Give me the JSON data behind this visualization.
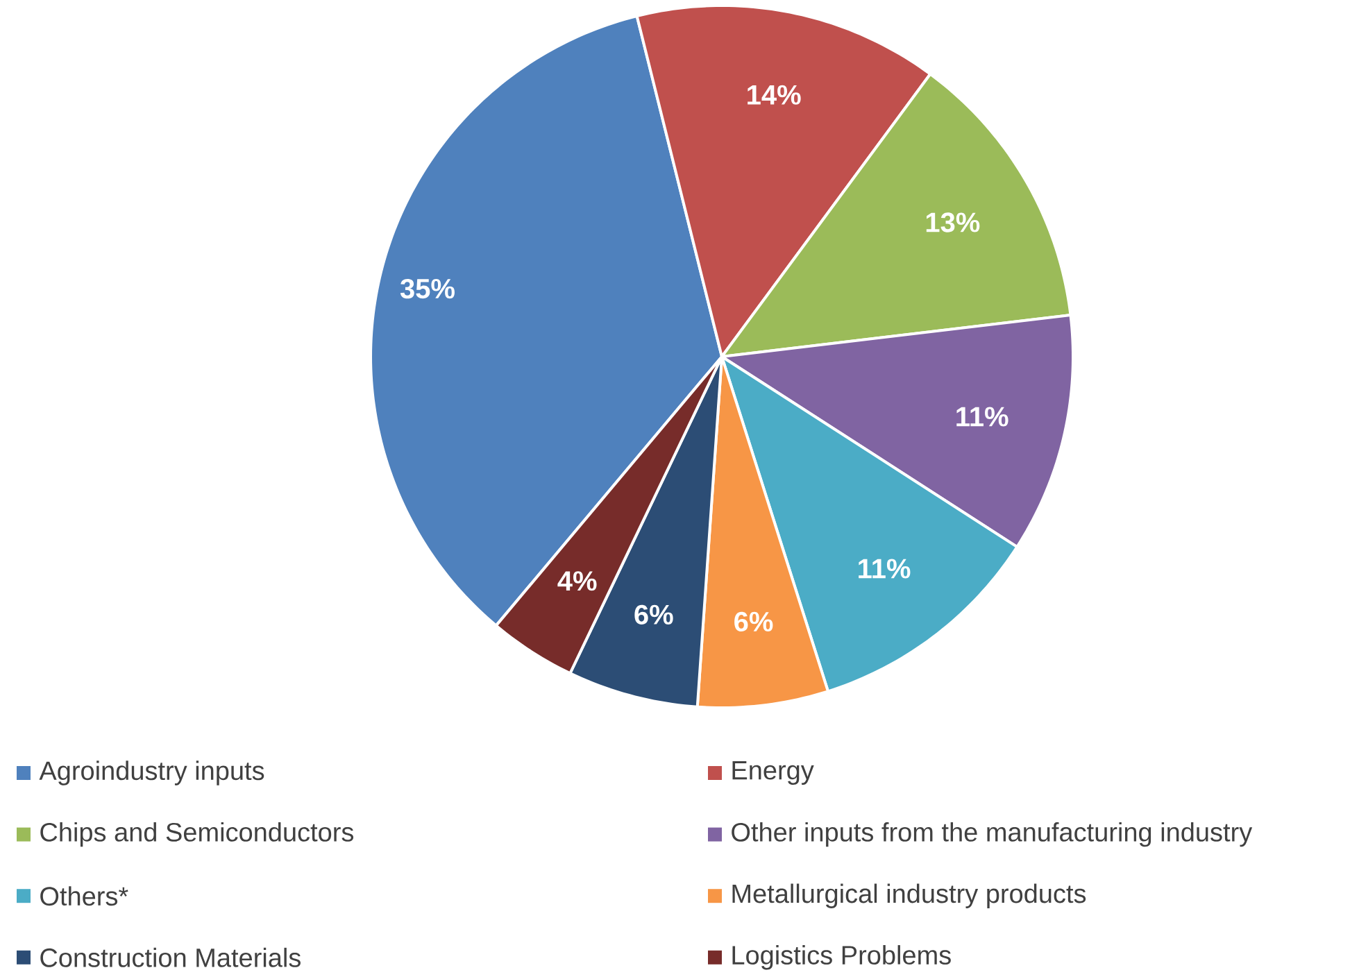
{
  "chart_data": {
    "type": "pie",
    "categories": [
      "Agroindustry inputs",
      "Energy",
      "Chips and Semiconductors",
      "Other inputs from the manufacturing industry",
      "Others*",
      "Metallurgical industry products",
      "Construction Materials",
      "Logistics Problems"
    ],
    "values": [
      35,
      14,
      13,
      11,
      11,
      6,
      6,
      4
    ],
    "value_labels": [
      "35%",
      "14%",
      "13%",
      "11%",
      "11%",
      "6%",
      "6%",
      "4%"
    ],
    "colors": [
      "#4f81bd",
      "#c0504d",
      "#9bbb59",
      "#8064a2",
      "#4bacc6",
      "#f79646",
      "#2c4d75",
      "#772c2a"
    ],
    "legend": "bottom"
  }
}
